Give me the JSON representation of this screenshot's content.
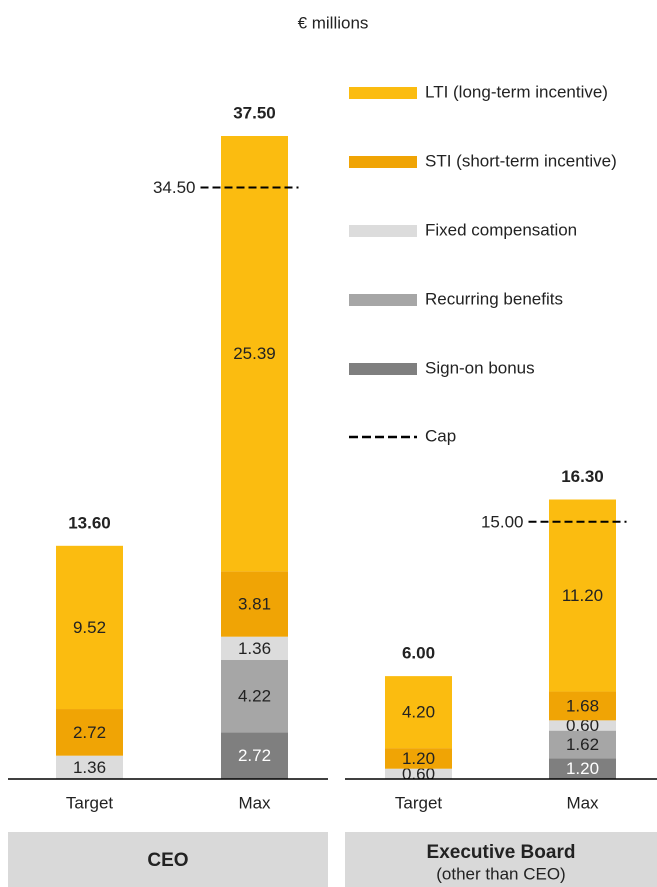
{
  "chart_data": {
    "type": "stacked_bar",
    "subtitle": "€ millions",
    "categories": [
      "Target",
      "Max",
      "Target",
      "Max"
    ],
    "groups": [
      {
        "label": "CEO",
        "members": 2
      },
      {
        "label": "Executive Board",
        "sublabel": "(other than CEO)",
        "members": 2
      }
    ],
    "ylim": [
      0,
      37.5
    ],
    "series": [
      {
        "name": "LTI (long-term incentive)",
        "color": "#fbbc10",
        "values": [
          9.52,
          25.39,
          4.2,
          11.2
        ],
        "value_labels": [
          "9.52",
          "25.39",
          "4.20",
          "11.20"
        ]
      },
      {
        "name": "STI (short-term incentive)",
        "color": "#f0a405",
        "values": [
          2.72,
          3.81,
          1.2,
          1.68
        ],
        "value_labels": [
          "2.72",
          "3.81",
          "1.20",
          "1.68"
        ]
      },
      {
        "name": "Fixed compensation",
        "color": "#dcdcdc",
        "values": [
          1.36,
          1.36,
          0.6,
          0.6
        ],
        "value_labels": [
          "1.36",
          "1.36",
          "0.60",
          "0.60"
        ]
      },
      {
        "name": "Recurring benefits",
        "color": "#a6a6a6",
        "values": [
          null,
          4.22,
          null,
          1.62
        ],
        "value_labels": [
          null,
          "4.22",
          null,
          "1.62"
        ]
      },
      {
        "name": "Sign-on bonus",
        "color": "#7f7f7f",
        "label_color": "#ffffff",
        "values": [
          null,
          2.72,
          null,
          1.2
        ],
        "value_labels": [
          null,
          "2.72",
          null,
          "1.20"
        ]
      }
    ],
    "totals": [
      13.6,
      37.5,
      6,
      16.3
    ],
    "total_labels": [
      "13.60",
      "37.50",
      "6.00",
      "16.30"
    ],
    "cap": {
      "name": "Cap",
      "values": [
        null,
        34.5,
        null,
        15
      ],
      "value_labels": [
        null,
        "34.50",
        null,
        "15.00"
      ]
    }
  }
}
